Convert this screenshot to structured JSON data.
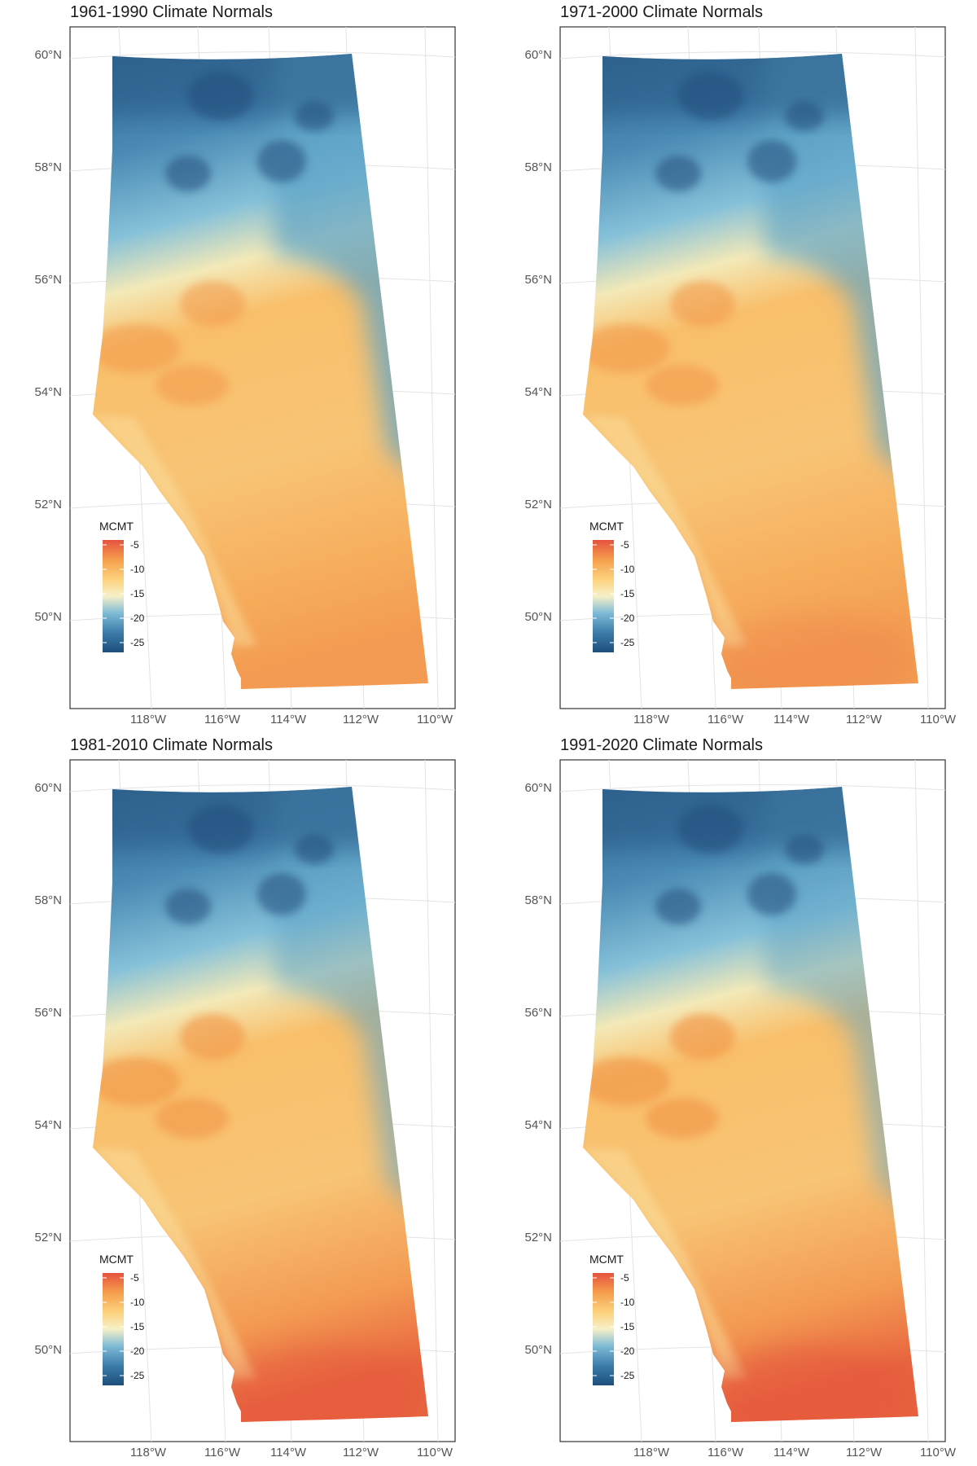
{
  "map_data": {
    "type": "raster-map-small-multiples",
    "region": "Alberta",
    "graticule_lat_labels": [
      "60°N",
      "58°N",
      "56°N",
      "54°N",
      "52°N",
      "50°N"
    ],
    "graticule_lon_labels": [
      "118°W",
      "116°W",
      "114°W",
      "112°W",
      "110°W"
    ],
    "legend": {
      "title": "MCMT",
      "ticks": [
        "-5",
        "-10",
        "-15",
        "-20",
        "-25"
      ],
      "range": [
        -27,
        -4
      ],
      "colors": [
        "#1d4f7c",
        "#3a7aa8",
        "#7fbbd6",
        "#f6f0c8",
        "#fdd27e",
        "#f5a04d",
        "#e4533e"
      ]
    },
    "panels": [
      {
        "title": "1961-1990 Climate Normals",
        "show_lon_labels": true
      },
      {
        "title": "1971-2000 Climate Normals",
        "show_lon_labels": true
      },
      {
        "title": "1981-2010 Climate Normals",
        "show_lon_labels": true
      },
      {
        "title": "1991-2020 Climate Normals",
        "show_lon_labels": true
      }
    ]
  }
}
